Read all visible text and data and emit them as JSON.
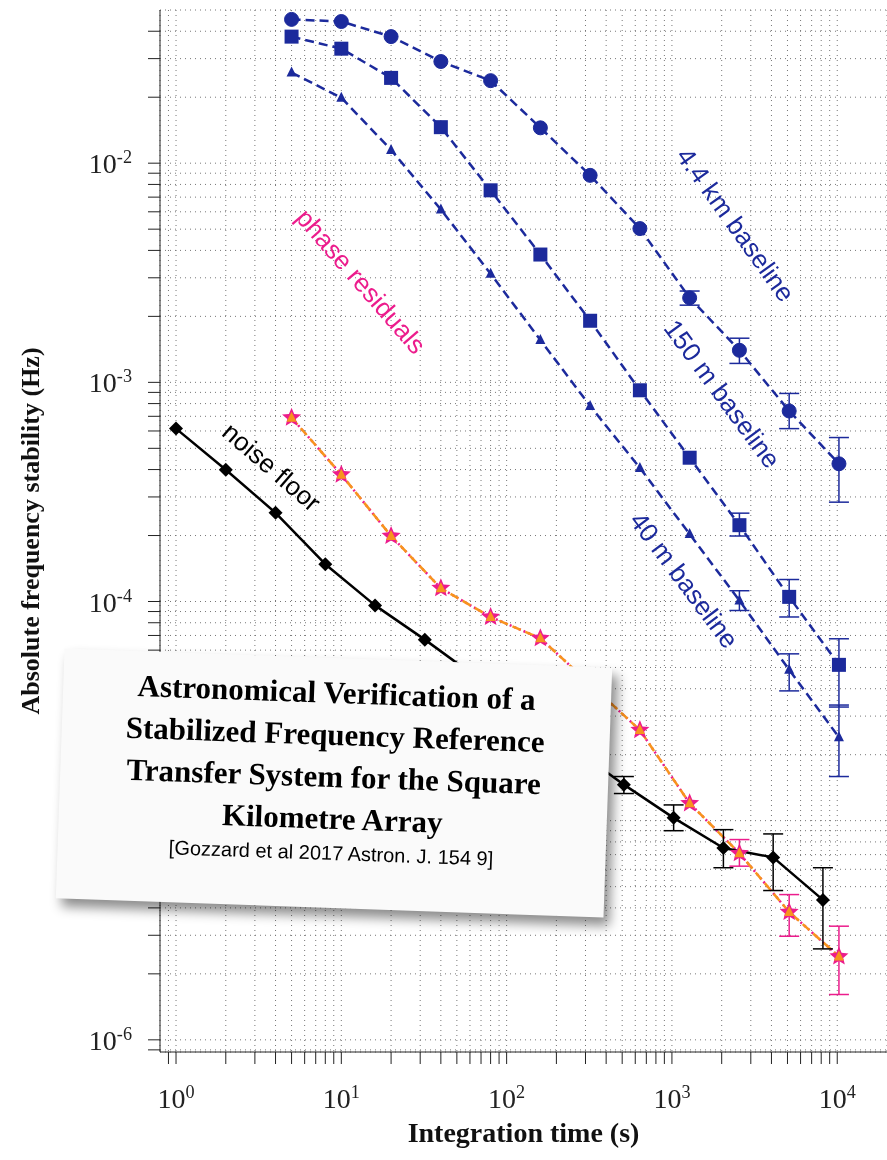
{
  "chart_data": {
    "type": "line",
    "title": "Astronomical Verification of a Stabilized Frequency Reference Transfer System for the Square Kilometre Array",
    "annotations": [
      "[Gozzard et al 2017 Astron. J. 154 9]"
    ],
    "xlabel": "Integration time (s)",
    "ylabel": "Absolute frequency stability (Hz)",
    "log": "xy",
    "grid": true,
    "xlim": [
      0.8,
      20000
    ],
    "ylim": [
      8.8e-07,
      0.05
    ],
    "xticks": [
      {
        "value": 0.9,
        "label": null
      },
      {
        "value": 1,
        "label": "10$^{0}$"
      },
      {
        "value": 2,
        "label": null
      },
      {
        "value": 3,
        "label": null
      },
      {
        "value": 4,
        "label": null
      },
      {
        "value": 5,
        "label": null
      },
      {
        "value": 6,
        "label": null
      },
      {
        "value": 7,
        "label": null
      },
      {
        "value": 8,
        "label": null
      },
      {
        "value": 9,
        "label": null
      },
      {
        "value": 10,
        "label": "10$^{1}$"
      },
      {
        "value": 20,
        "label": null
      },
      {
        "value": 30,
        "label": null
      },
      {
        "value": 40,
        "label": null
      },
      {
        "value": 50,
        "label": null
      },
      {
        "value": 60,
        "label": null
      },
      {
        "value": 70,
        "label": null
      },
      {
        "value": 80,
        "label": null
      },
      {
        "value": 90,
        "label": null
      },
      {
        "value": 100,
        "label": "10$^{2}$"
      },
      {
        "value": 200,
        "label": null
      },
      {
        "value": 300,
        "label": null
      },
      {
        "value": 400,
        "label": null
      },
      {
        "value": 500,
        "label": null
      },
      {
        "value": 600,
        "label": null
      },
      {
        "value": 700,
        "label": null
      },
      {
        "value": 800,
        "label": null
      },
      {
        "value": 900,
        "label": null
      },
      {
        "value": 1000,
        "label": "10$^{3}$"
      },
      {
        "value": 2000,
        "label": null
      },
      {
        "value": 3000,
        "label": null
      },
      {
        "value": 4000,
        "label": null
      },
      {
        "value": 5000,
        "label": null
      },
      {
        "value": 6000,
        "label": null
      },
      {
        "value": 7000,
        "label": null
      },
      {
        "value": 8000,
        "label": null
      },
      {
        "value": 9000,
        "label": null
      },
      {
        "value": 10000,
        "label": "10$^{4}$"
      }
    ],
    "yticks": [
      {
        "value": 9e-07,
        "label": null
      },
      {
        "value": 1e-06,
        "label": "10$^{-6}$"
      },
      {
        "value": 2e-06,
        "label": null
      },
      {
        "value": 3e-06,
        "label": null
      },
      {
        "value": 4e-06,
        "label": null
      },
      {
        "value": 5e-06,
        "label": null
      },
      {
        "value": 6e-06,
        "label": null
      },
      {
        "value": 7e-06,
        "label": null
      },
      {
        "value": 8e-06,
        "label": null
      },
      {
        "value": 9e-06,
        "label": null
      },
      {
        "value": 1e-05,
        "label": null
      },
      {
        "value": 2e-05,
        "label": null
      },
      {
        "value": 3e-05,
        "label": null
      },
      {
        "value": 4e-05,
        "label": null
      },
      {
        "value": 5e-05,
        "label": null
      },
      {
        "value": 6e-05,
        "label": null
      },
      {
        "value": 7e-05,
        "label": null
      },
      {
        "value": 8e-05,
        "label": null
      },
      {
        "value": 9e-05,
        "label": null
      },
      {
        "value": 0.0001,
        "label": "10$^{-4}$"
      },
      {
        "value": 0.0002,
        "label": null
      },
      {
        "value": 0.0003,
        "label": null
      },
      {
        "value": 0.0004,
        "label": null
      },
      {
        "value": 0.0005,
        "label": null
      },
      {
        "value": 0.0006,
        "label": null
      },
      {
        "value": 0.0007,
        "label": null
      },
      {
        "value": 0.0008,
        "label": null
      },
      {
        "value": 0.0009,
        "label": null
      },
      {
        "value": 0.001,
        "label": "10$^{-3}$"
      },
      {
        "value": 0.002,
        "label": null
      },
      {
        "value": 0.003,
        "label": null
      },
      {
        "value": 0.004,
        "label": null
      },
      {
        "value": 0.005,
        "label": null
      },
      {
        "value": 0.006,
        "label": null
      },
      {
        "value": 0.007,
        "label": null
      },
      {
        "value": 0.008,
        "label": null
      },
      {
        "value": 0.009,
        "label": null
      },
      {
        "value": 0.01,
        "label": "10$^{-2}$"
      },
      {
        "value": 0.02,
        "label": null
      },
      {
        "value": 0.03,
        "label": null
      },
      {
        "value": 0.04,
        "label": null
      }
    ],
    "series": [
      {
        "name": "4.4 km baseline",
        "color": "#1c2a9c",
        "marker": "circle",
        "line_style": "dashed",
        "x": [
          5,
          10,
          20,
          40,
          80,
          160,
          320,
          640,
          1280,
          2560,
          5120,
          10240
        ],
        "values": [
          0.0453,
          0.0443,
          0.0378,
          0.0291,
          0.0238,
          0.0145,
          0.0088,
          0.00503,
          0.00243,
          0.0014,
          0.00074,
          0.000425
        ],
        "errors": [
          null,
          null,
          null,
          null,
          null,
          null,
          null,
          null,
          [
            0.00225,
            0.00261
          ],
          [
            0.00122,
            0.00159
          ],
          [
            0.000615,
            0.00089
          ],
          [
            0.000284,
            0.00056
          ]
        ]
      },
      {
        "name": "150 m baseline",
        "color": "#1c2a9c",
        "marker": "square",
        "line_style": "dashed",
        "x": [
          5,
          10,
          20,
          40,
          80,
          160,
          320,
          640,
          1280,
          2560,
          5120,
          10240
        ],
        "values": [
          0.0378,
          0.0333,
          0.0245,
          0.0146,
          0.00752,
          0.00383,
          0.00191,
          0.00092,
          0.000453,
          0.000223,
          0.000105,
          5.14e-05
        ],
        "errors": [
          null,
          null,
          null,
          null,
          null,
          null,
          null,
          null,
          null,
          [
            0.000199,
            0.000253
          ],
          [
            8.5e-05,
            0.000126
          ],
          [
            3.3e-05,
            6.76e-05
          ]
        ]
      },
      {
        "name": "40 m baseline",
        "color": "#1c2a9c",
        "marker": "triangle",
        "line_style": "dashed",
        "x": [
          5,
          10,
          20,
          40,
          80,
          160,
          320,
          640,
          1280,
          2560,
          5120,
          10240
        ],
        "values": [
          0.0259,
          0.0199,
          0.0115,
          0.00615,
          0.00313,
          0.00156,
          0.00078,
          0.000407,
          0.000203,
          0.000101,
          4.88e-05,
          2.4e-05
        ],
        "errors": [
          null,
          null,
          null,
          null,
          null,
          null,
          null,
          null,
          null,
          [
            9.1e-05,
            0.000112
          ],
          [
            3.91e-05,
            5.77e-05
          ],
          [
            1.59e-05,
            3.37e-05
          ]
        ]
      },
      {
        "name": "phase residuals",
        "color": "#ec1c8c",
        "marker": "star",
        "line_style": "dotted",
        "x": [
          5,
          10,
          20,
          40,
          80,
          160,
          640,
          1280,
          2560,
          5120,
          10240
        ],
        "values": [
          0.00069,
          0.000379,
          0.000199,
          0.000115,
          8.5e-05,
          6.8e-05,
          2.59e-05,
          1.2e-05,
          7.1e-06,
          3.83e-06,
          2.4e-06
        ],
        "errors": [
          null,
          null,
          null,
          null,
          null,
          null,
          null,
          null,
          [
            6.2e-06,
            8.2e-06
          ],
          [
            2.97e-06,
            4.6e-06
          ],
          [
            1.61e-06,
            3.3e-06
          ]
        ]
      },
      {
        "color": "#f7941d",
        "marker": "triangle",
        "line_style": "dashed",
        "x": [
          5,
          10,
          20,
          40,
          80,
          160,
          640,
          1280,
          2560,
          5120,
          10240
        ],
        "values": [
          0.00069,
          0.000379,
          0.000199,
          0.000115,
          8.5e-05,
          6.8e-05,
          2.59e-05,
          1.2e-05,
          7.1e-06,
          3.83e-06,
          2.4e-06
        ]
      },
      {
        "name": "noise floor",
        "color": "#000000",
        "marker": "diamond",
        "line_style": "solid",
        "x": [
          1,
          2,
          4,
          8,
          16,
          32,
          512,
          1024,
          2048,
          4096,
          8192
        ],
        "values": [
          0.000615,
          0.000399,
          0.000254,
          0.000148,
          9.6e-05,
          6.7e-05,
          1.46e-05,
          1.03e-05,
          7.5e-06,
          6.8e-06,
          4.35e-06
        ],
        "errors": [
          null,
          null,
          null,
          null,
          null,
          null,
          [
            1.33e-05,
            1.59e-05
          ],
          [
            9e-06,
            1.18e-05
          ],
          [
            6.1e-06,
            9.1e-06
          ],
          [
            4.8e-06,
            8.7e-06
          ],
          [
            2.6e-06,
            6.1e-06
          ]
        ]
      }
    ]
  }
}
